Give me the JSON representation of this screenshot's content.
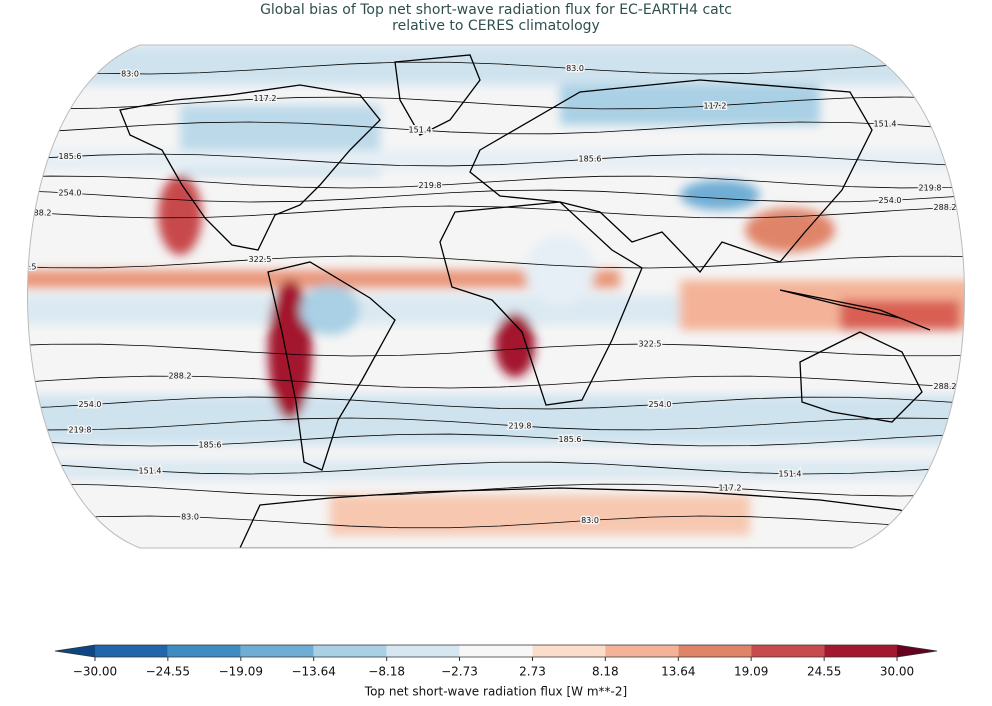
{
  "title": [
    "Global bias of Top net short-wave radiation flux for EC-EARTH4 catc",
    "relative to CERES climatology"
  ],
  "contour_levels": [
    {
      "value": 83.0,
      "label": "83.0"
    },
    117.2,
    151.4,
    185.6,
    219.8,
    {
      "value": 254.0,
      "label": "254.0"
    },
    288.2,
    322.5
  ],
  "colorbar": {
    "label": "Top net short-wave radiation flux [W m**-2]",
    "ticks": [
      {
        "value": -30,
        "label": "−30.00"
      },
      {
        "value": -24.55,
        "label": "−24.55"
      },
      {
        "value": -19.09,
        "label": "−19.09"
      },
      {
        "value": -13.64,
        "label": "−13.64"
      },
      {
        "value": -8.18,
        "label": "−8.18"
      },
      {
        "value": -2.73,
        "label": "−2.73"
      },
      {
        "value": 2.73,
        "label": "2.73"
      },
      {
        "value": 8.18,
        "label": "8.18"
      },
      {
        "value": 13.64,
        "label": "13.64"
      },
      {
        "value": 19.09,
        "label": "19.09"
      },
      {
        "value": 24.55,
        "label": "24.55"
      },
      {
        "value": 30,
        "label": "30.00"
      }
    ],
    "colors": [
      "#2166ac",
      "#3f8cc2",
      "#6fadd5",
      "#a9d0e5",
      "#d6e7f1",
      "#f7f7f7",
      "#fcdcca",
      "#f4b398",
      "#e08469",
      "#c84a4c",
      "#a3182e"
    ],
    "extend_colors": [
      "#0d4683",
      "#67001f"
    ]
  }
}
